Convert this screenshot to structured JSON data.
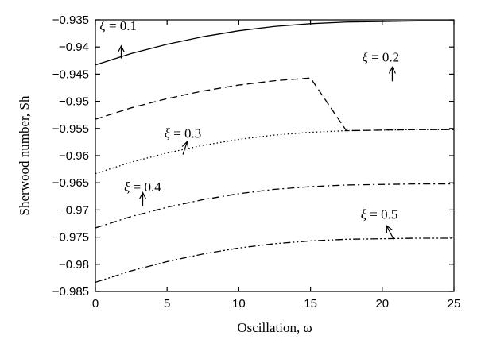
{
  "chart_data": {
    "type": "line",
    "xlabel": "Oscillation, ω",
    "ylabel": "Sherwood number, Sh",
    "xlim": [
      0,
      25
    ],
    "ylim": [
      -0.985,
      -0.935
    ],
    "xticks": [
      0,
      5,
      10,
      15,
      20,
      25
    ],
    "xtick_labels": [
      "0",
      "5",
      "10",
      "15",
      "20",
      "25"
    ],
    "yticks": [
      -0.935,
      -0.94,
      -0.945,
      -0.95,
      -0.955,
      -0.96,
      -0.965,
      -0.97,
      -0.975,
      -0.98,
      -0.985
    ],
    "ytick_labels": [
      "−0.935",
      "−0.94",
      "−0.945",
      "−0.95",
      "−0.955",
      "−0.96",
      "−0.965",
      "−0.97",
      "−0.975",
      "−0.98",
      "−0.985"
    ],
    "grid": false,
    "legend": "none",
    "x": [
      0,
      2.5,
      5,
      7.5,
      10,
      12.5,
      15,
      17.5,
      20,
      22.5,
      25
    ],
    "series": [
      {
        "values": [
          -0.9433,
          -0.9412,
          -0.9395,
          -0.9381,
          -0.937,
          -0.9362,
          -0.9357,
          -0.9354,
          -0.9353,
          -0.9352,
          -0.9352
        ],
        "style": "solid"
      },
      {
        "values": [
          -0.9533,
          -0.9512,
          -0.9495,
          -0.9481,
          -0.947,
          -0.9462,
          -0.9457,
          -0.9554,
          -0.9553,
          -0.9552,
          -0.9552
        ],
        "style": "dashed"
      },
      {
        "values": [
          -0.9633,
          -0.9612,
          -0.9595,
          -0.9581,
          -0.957,
          -0.9562,
          -0.9557,
          -0.9554,
          -0.9553,
          -0.9552,
          -0.9552
        ],
        "style": "dotted"
      },
      {
        "values": [
          -0.9733,
          -0.9712,
          -0.9695,
          -0.9681,
          -0.967,
          -0.9662,
          -0.9657,
          -0.9654,
          -0.9653,
          -0.9652,
          -0.9652
        ],
        "style": "dashdot"
      },
      {
        "values": [
          -0.9833,
          -0.9812,
          -0.9795,
          -0.9781,
          -0.977,
          -0.9762,
          -0.9757,
          -0.9754,
          -0.9753,
          -0.9752,
          -0.9752
        ],
        "style": "dashdotdot"
      }
    ],
    "annotations": [
      {
        "sym": "ξ",
        "text": " = 0.1",
        "text_at": [
          0.3,
          -0.9369
        ],
        "arrow_from": [
          1.8,
          -0.9421
        ],
        "arrow_to": [
          1.8,
          -0.9398
        ]
      },
      {
        "sym": "ξ",
        "text": " = 0.2",
        "text_at": [
          18.6,
          -0.9427
        ],
        "arrow_from": [
          20.7,
          -0.9463
        ],
        "arrow_to": [
          20.7,
          -0.9437
        ]
      },
      {
        "sym": "ξ",
        "text": " = 0.3",
        "text_at": [
          4.8,
          -0.9567
        ],
        "arrow_from": [
          6.1,
          -0.9598
        ],
        "arrow_to": [
          6.4,
          -0.9574
        ]
      },
      {
        "sym": "ξ",
        "text": " = 0.4",
        "text_at": [
          2.0,
          -0.9666
        ],
        "arrow_from": [
          3.3,
          -0.9693
        ],
        "arrow_to": [
          3.3,
          -0.9668
        ]
      },
      {
        "sym": "ξ",
        "text": " = 0.5",
        "text_at": [
          18.5,
          -0.9716
        ],
        "arrow_from": [
          20.8,
          -0.9754
        ],
        "arrow_to": [
          20.3,
          -0.9729
        ]
      }
    ]
  }
}
